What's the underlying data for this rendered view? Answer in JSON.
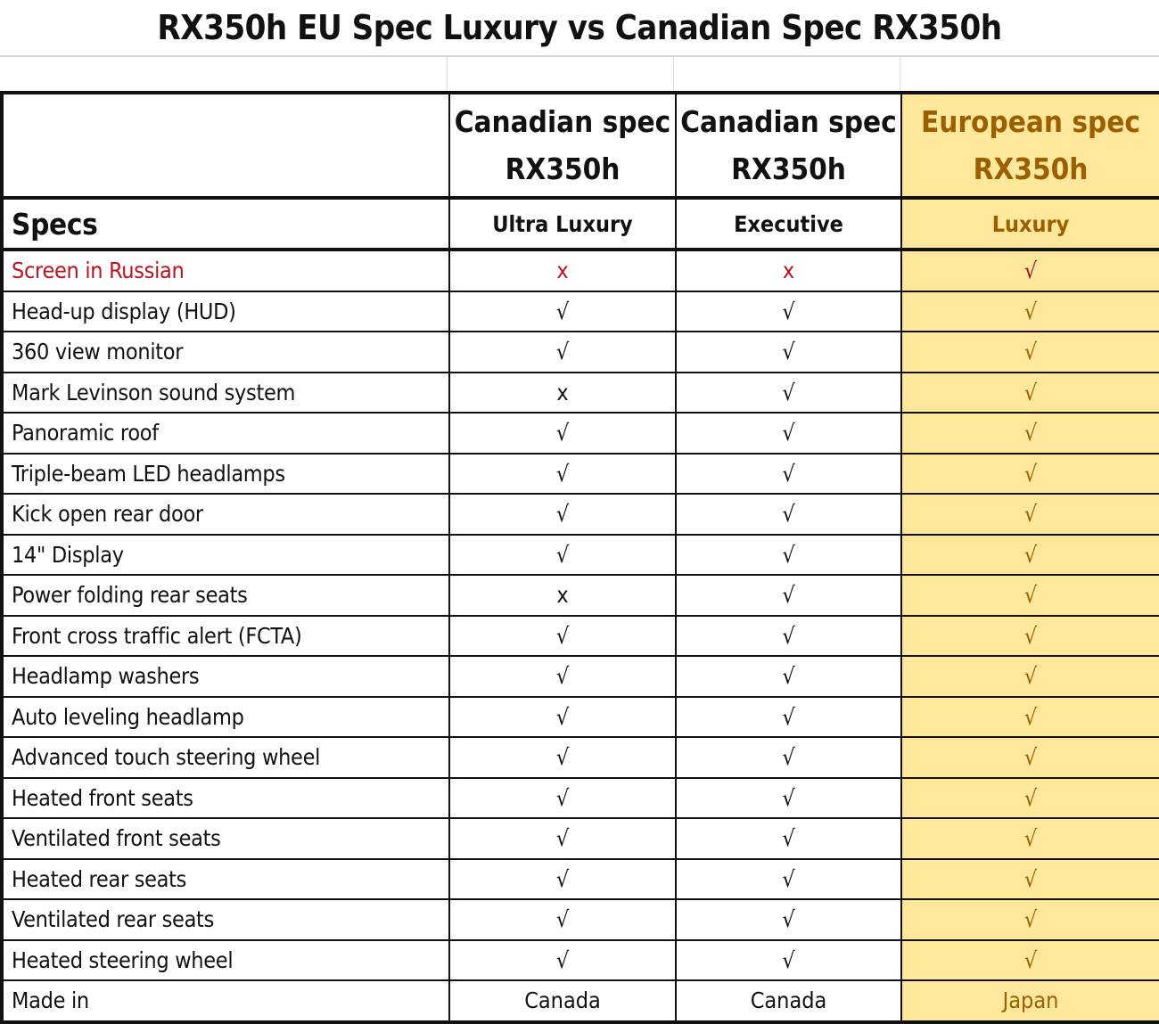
{
  "title": "RX350h EU Spec Luxury vs Canadian Spec RX350h",
  "columns": [
    {
      "model": "Canadian spec RX350h",
      "trim": "Ultra Luxury"
    },
    {
      "model": "Canadian spec RX350h",
      "trim": "Executive"
    },
    {
      "model": "European spec RX350h",
      "trim": "Luxury"
    }
  ],
  "specs_label": "Specs",
  "colors": {
    "highlight_fill": "#FFE79C",
    "highlight_text": "#9C5F00",
    "negative_text": "#B8141E"
  },
  "rows": [
    {
      "spec": "Screen in Russian",
      "values": [
        "x",
        "x",
        "√"
      ]
    },
    {
      "spec": "Head-up display (HUD)",
      "values": [
        "√",
        "√",
        "√"
      ]
    },
    {
      "spec": "360 view monitor",
      "values": [
        "√",
        "√",
        "√"
      ]
    },
    {
      "spec": "Mark Levinson sound system",
      "values": [
        "x",
        "√",
        "√"
      ]
    },
    {
      "spec": "Panoramic roof",
      "values": [
        "√",
        "√",
        "√"
      ]
    },
    {
      "spec": "Triple-beam LED headlamps",
      "values": [
        "√",
        "√",
        "√"
      ]
    },
    {
      "spec": "Kick open rear door",
      "values": [
        "√",
        "√",
        "√"
      ]
    },
    {
      "spec": "14\" Display",
      "values": [
        "√",
        "√",
        "√"
      ]
    },
    {
      "spec": "Power folding rear seats",
      "values": [
        "x",
        "√",
        "√"
      ]
    },
    {
      "spec": "Front cross traffic alert (FCTA)",
      "values": [
        "√",
        "√",
        "√"
      ]
    },
    {
      "spec": "Headlamp washers",
      "values": [
        "√",
        "√",
        "√"
      ]
    },
    {
      "spec": "Auto leveling headlamp",
      "values": [
        "√",
        "√",
        "√"
      ]
    },
    {
      "spec": "Advanced touch steering wheel",
      "values": [
        "√",
        "√",
        "√"
      ]
    },
    {
      "spec": "Heated front seats",
      "values": [
        "√",
        "√",
        "√"
      ]
    },
    {
      "spec": "Ventilated front seats",
      "values": [
        "√",
        "√",
        "√"
      ]
    },
    {
      "spec": "Heated rear seats",
      "values": [
        "√",
        "√",
        "√"
      ]
    },
    {
      "spec": "Ventilated rear seats",
      "values": [
        "√",
        "√",
        "√"
      ]
    },
    {
      "spec": "Heated steering wheel",
      "values": [
        "√",
        "√",
        "√"
      ]
    },
    {
      "spec": "Made in",
      "values": [
        "Canada",
        "Canada",
        "Japan"
      ]
    }
  ]
}
